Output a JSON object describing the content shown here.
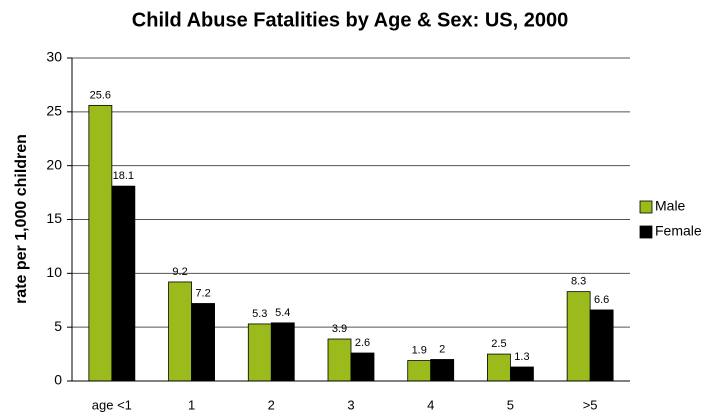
{
  "chart_data": {
    "type": "bar",
    "title": "Child Abuse Fatalities by Age & Sex: US, 2000",
    "y_label": "rate per 1,000 children",
    "categories": [
      "age <1",
      "1",
      "2",
      "3",
      "4",
      "5",
      ">5"
    ],
    "series": [
      {
        "name": "Male",
        "color": "#9bbb1c",
        "values": [
          25.6,
          9.2,
          5.3,
          3.9,
          1.9,
          2.5,
          8.3
        ]
      },
      {
        "name": "Female",
        "color": "#000000",
        "values": [
          18.1,
          7.2,
          5.4,
          2.6,
          2,
          1.3,
          6.6
        ]
      }
    ],
    "ylim": [
      0,
      30
    ],
    "yticks": [
      0,
      5,
      10,
      15,
      20,
      25,
      30
    ],
    "grid": true,
    "legend": "right"
  }
}
